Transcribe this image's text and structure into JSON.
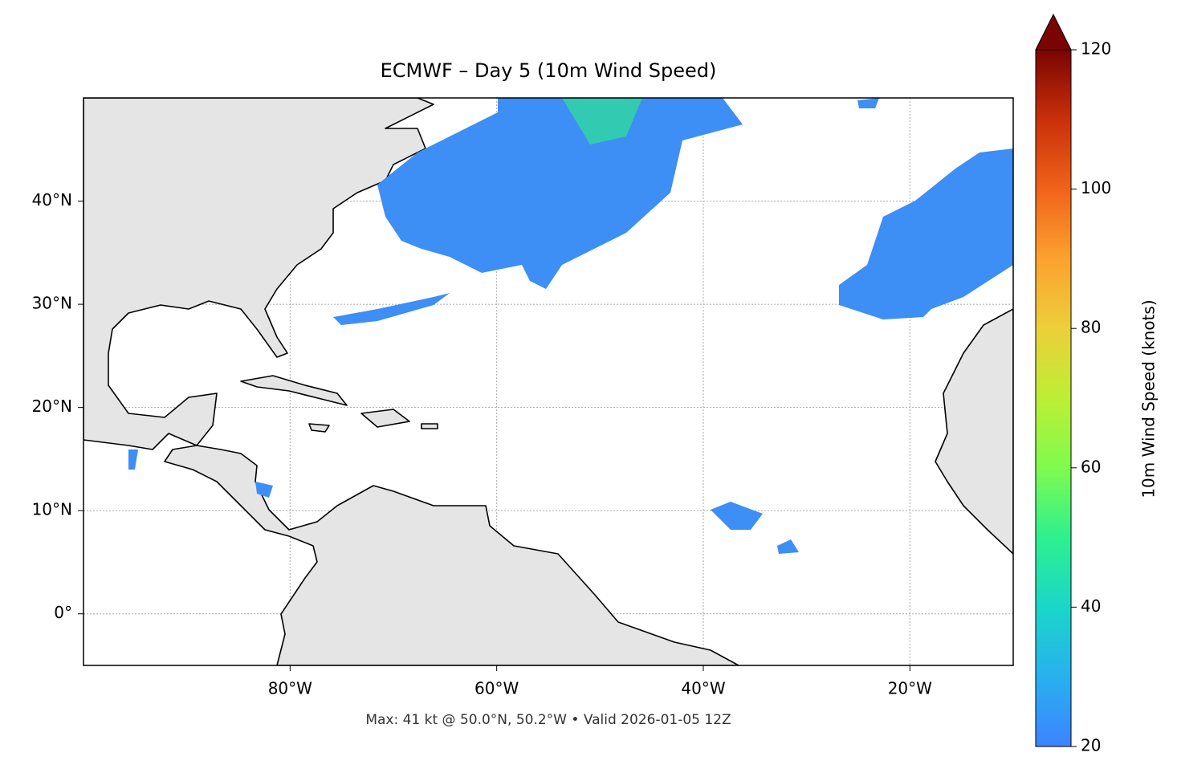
{
  "chart_data": {
    "type": "map",
    "title": "ECMWF – Day 5 (10m Wind Speed)",
    "caption": "Max: 41 kt @ 50.0°N, 50.2°W • Valid 2026-01-05 12Z",
    "xlim": [
      -100,
      -10
    ],
    "xticks": [
      {
        "value": -80,
        "label": "80°W"
      },
      {
        "value": -60,
        "label": "60°W"
      },
      {
        "value": -40,
        "label": "40°W"
      },
      {
        "value": -20,
        "label": "20°W"
      }
    ],
    "ylim": [
      -5,
      50
    ],
    "yticks": [
      {
        "value": 0,
        "label": "0°"
      },
      {
        "value": 10,
        "label": "10°N"
      },
      {
        "value": 20,
        "label": "20°N"
      },
      {
        "value": 30,
        "label": "30°N"
      },
      {
        "value": 40,
        "label": "40°N"
      }
    ],
    "grid": true,
    "colorbar": {
      "label": "10m Wind Speed (knots)",
      "lim": [
        20,
        120
      ],
      "ticks": [
        20,
        40,
        60,
        80,
        100,
        120
      ]
    }
  }
}
